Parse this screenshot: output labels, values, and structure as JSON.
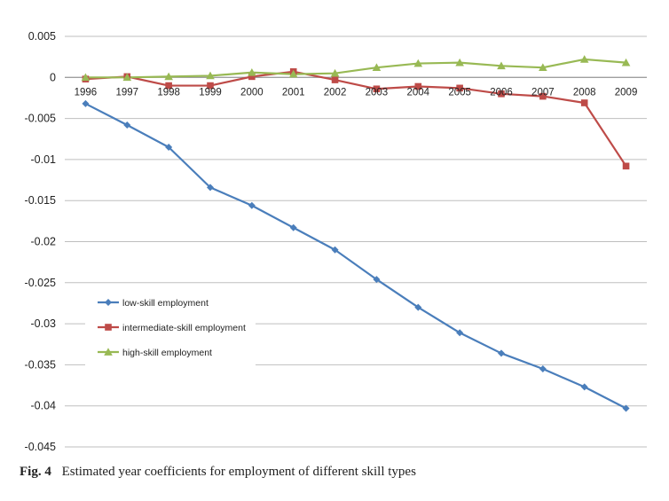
{
  "chart_data": {
    "type": "line",
    "categories": [
      "1996",
      "1997",
      "1998",
      "1999",
      "2000",
      "2001",
      "2002",
      "2003",
      "2004",
      "2005",
      "2006",
      "2007",
      "2008",
      "2009"
    ],
    "series": [
      {
        "name": "low-skill employment",
        "color": "#4a7ebb",
        "marker": "diamond",
        "values": [
          -0.0032,
          -0.0058,
          -0.0085,
          -0.0134,
          -0.0156,
          -0.0183,
          -0.021,
          -0.0246,
          -0.028,
          -0.0311,
          -0.0336,
          -0.0355,
          -0.0377,
          -0.0403
        ]
      },
      {
        "name": "intermediate-skill employment",
        "color": "#be4b48",
        "marker": "square",
        "values": [
          -0.0002,
          0.0001,
          -0.001,
          -0.001,
          0.0001,
          0.0007,
          -0.0003,
          -0.0014,
          -0.0011,
          -0.0013,
          -0.002,
          -0.0023,
          -0.0031,
          -0.0108
        ]
      },
      {
        "name": "high-skill employment",
        "color": "#98b954",
        "marker": "triangle",
        "values": [
          0.0,
          0.0,
          0.0001,
          0.0002,
          0.0006,
          0.0004,
          0.0005,
          0.0012,
          0.0017,
          0.0018,
          0.0014,
          0.0012,
          0.0022,
          0.0018
        ]
      }
    ],
    "y_ticks": [
      "0.005",
      "0",
      "-0.005",
      "-0.01",
      "-0.015",
      "-0.02",
      "-0.025",
      "-0.03",
      "-0.035",
      "-0.04",
      "-0.045"
    ],
    "y_tick_values": [
      0.005,
      0,
      -0.005,
      -0.01,
      -0.015,
      -0.02,
      -0.025,
      -0.03,
      -0.035,
      -0.04,
      -0.045
    ],
    "ylim": [
      -0.045,
      0.005
    ],
    "grid": true,
    "legend_position": "left-middle",
    "xlabel": "",
    "ylabel": ""
  },
  "caption": {
    "label": "Fig. 4",
    "text": "Estimated year coefficients for employment of different skill types"
  }
}
